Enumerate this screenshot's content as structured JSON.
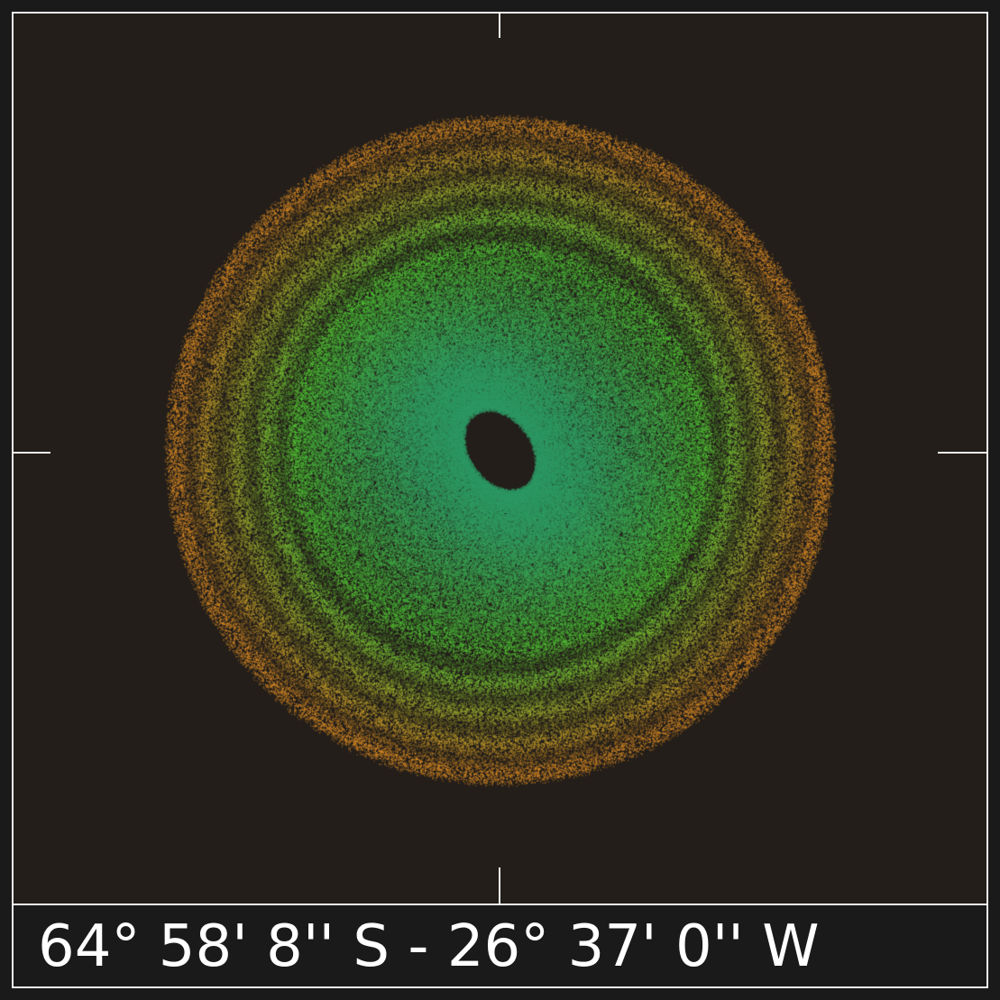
{
  "caption": "64° 58' 8'' S - 26° 37' 0'' W",
  "colors": {
    "background": "#1b1a1a",
    "canvas": "#231e1a",
    "frame": "#f2f2f2",
    "inner": "#2f9a66",
    "middle": "#4fc436",
    "outer": "#d88a24"
  }
}
